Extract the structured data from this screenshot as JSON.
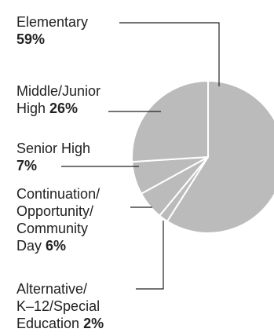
{
  "chart_data": {
    "type": "pie",
    "slice_color": "#bbbbbb",
    "separator_color": "#ffffff",
    "leader_color": "#222222",
    "slices": [
      {
        "label": "Elementary",
        "value": 59
      },
      {
        "label": "Alternative/ K–12/Special Education",
        "value": 2
      },
      {
        "label": "Continuation/ Opportunity/ Community Day",
        "value": 6
      },
      {
        "label": "Senior High",
        "value": 7
      },
      {
        "label": "Middle/Junior High",
        "value": 26
      }
    ]
  },
  "labels": {
    "elementary": {
      "line1": "Elementary",
      "pct": "59%"
    },
    "middle": {
      "line1": "Middle/Junior",
      "line2a": "High ",
      "pct": "26%"
    },
    "senior": {
      "line1": "Senior High",
      "pct": "7%"
    },
    "continuation": {
      "line1": "Continuation/",
      "line2": "Opportunity/",
      "line3": "Community",
      "line4a": "Day ",
      "pct": "6%"
    },
    "alternative": {
      "line1": "Alternative/",
      "line2": "K–12/Special",
      "line3a": "Education ",
      "pct": "2%"
    }
  }
}
